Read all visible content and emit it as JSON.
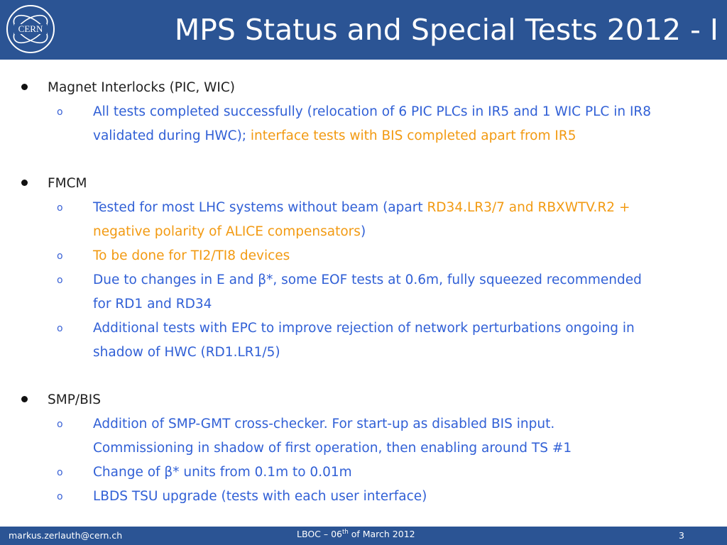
{
  "header": {
    "logo_text": "CERN",
    "title": "MPS Status and Special Tests 2012 - I"
  },
  "colors": {
    "header_bar": "#2b5494",
    "blue_text": "#3160d6",
    "orange_text": "#f29a12"
  },
  "sections": [
    {
      "heading": "Magnet Interlocks (PIC, WIC)",
      "items": [
        {
          "marker": "o",
          "line1_blue": "All tests completed successfully (relocation of 6 PIC PLCs in IR5 and 1 WIC PLC in IR8",
          "line2_blue": "validated during HWC); ",
          "line2_orange": "interface tests with BIS completed apart from IR5"
        }
      ]
    },
    {
      "heading": "FMCM",
      "items": [
        {
          "marker": "o",
          "line1_blue": "Tested for most LHC systems without beam (apart ",
          "line1_orange": "RD34.LR3/7 and RBXWTV.R2 +",
          "line2_orange": "negative polarity of ALICE compensators",
          "line2_blue": ")"
        },
        {
          "marker": "o",
          "line1_orange": "To be done for TI2/TI8 devices"
        },
        {
          "marker": "o",
          "line1_blue": "Due to changes in E and β*, some EOF tests at 0.6m, fully squeezed recommended",
          "line2_blue": "for RD1 and RD34"
        },
        {
          "marker": "o",
          "line1_blue": "Additional tests with EPC to improve rejection of network perturbations ongoing in",
          "line2_blue": "shadow of HWC (RD1.LR1/5)"
        }
      ]
    },
    {
      "heading": "SMP/BIS",
      "items": [
        {
          "marker": "o",
          "line1_blue": "Addition of SMP-GMT cross-checker. For start-up as disabled BIS input.",
          "line2_blue": "Commissioning in shadow of first operation, then enabling around TS #1"
        },
        {
          "marker": "o",
          "line1_blue": "Change of β* units from 0.1m to 0.01m"
        },
        {
          "marker": "o",
          "line1_blue": "LBDS TSU upgrade (tests with each user interface)"
        }
      ]
    }
  ],
  "footer": {
    "email": "markus.zerlauth@cern.ch",
    "event_prefix": "LBOC – 06",
    "event_sup": "th",
    "event_suffix": " of March 2012",
    "page_number": "3"
  }
}
